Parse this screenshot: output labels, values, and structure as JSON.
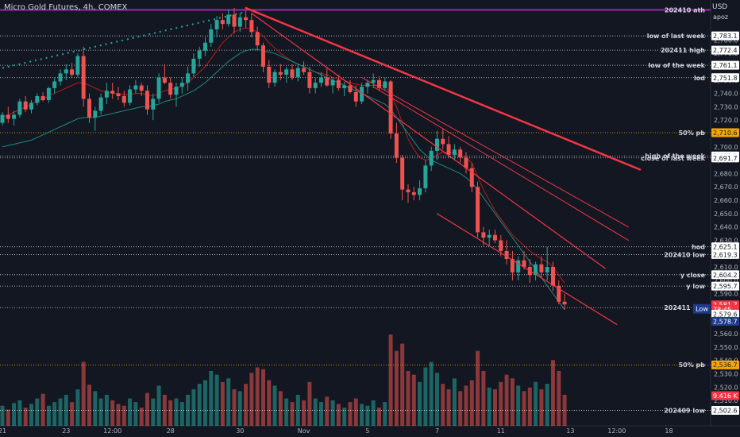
{
  "header": {
    "title": "Micro Gold Futures, 4h, COMEX",
    "currency": "USD",
    "user": "apoz"
  },
  "chart_data": {
    "type": "candlestick",
    "ylim": [
      2494,
      2807
    ],
    "price_ticks": [
      2780,
      2770,
      2760,
      2750,
      2740,
      2730,
      2720,
      2700,
      2690,
      2680,
      2670,
      2660,
      2650,
      2640,
      2630,
      2620,
      2610,
      2600,
      2590,
      2570,
      2560,
      2550,
      2540,
      2530,
      2520,
      2510
    ],
    "x_labels": [
      {
        "label": "21",
        "slot": 0
      },
      {
        "label": "23",
        "slot": 11
      },
      {
        "label": "12:00",
        "slot": 19
      },
      {
        "label": "28",
        "slot": 29
      },
      {
        "label": "30",
        "slot": 41
      },
      {
        "label": "Nov",
        "slot": 52
      },
      {
        "label": "5",
        "slot": 63
      },
      {
        "label": "7",
        "slot": 75
      },
      {
        "label": "11",
        "slot": 86
      },
      {
        "label": "13",
        "slot": 98
      },
      {
        "label": "12:00",
        "slot": 106
      },
      {
        "label": "18",
        "slot": 115
      }
    ],
    "candles": [
      [
        2718,
        2726,
        2716,
        2724
      ],
      [
        2724,
        2730,
        2718,
        2721
      ],
      [
        2721,
        2727,
        2716,
        2724
      ],
      [
        2724,
        2736,
        2722,
        2734
      ],
      [
        2734,
        2738,
        2726,
        2728
      ],
      [
        2728,
        2735,
        2725,
        2733
      ],
      [
        2733,
        2740,
        2731,
        2738
      ],
      [
        2738,
        2741,
        2734,
        2735
      ],
      [
        2735,
        2745,
        2733,
        2744
      ],
      [
        2744,
        2752,
        2740,
        2749
      ],
      [
        2749,
        2758,
        2746,
        2755
      ],
      [
        2755,
        2762,
        2750,
        2758
      ],
      [
        2758,
        2763,
        2752,
        2754
      ],
      [
        2754,
        2770,
        2752,
        2768
      ],
      [
        2768,
        2775,
        2730,
        2736
      ],
      [
        2736,
        2740,
        2718,
        2722
      ],
      [
        2722,
        2730,
        2712,
        2727
      ],
      [
        2727,
        2740,
        2724,
        2737
      ],
      [
        2737,
        2748,
        2732,
        2742
      ],
      [
        2742,
        2748,
        2736,
        2740
      ],
      [
        2740,
        2745,
        2735,
        2738
      ],
      [
        2738,
        2742,
        2730,
        2733
      ],
      [
        2733,
        2746,
        2731,
        2743
      ],
      [
        2743,
        2750,
        2740,
        2746
      ],
      [
        2746,
        2748,
        2738,
        2742
      ],
      [
        2742,
        2746,
        2724,
        2728
      ],
      [
        2728,
        2740,
        2720,
        2736
      ],
      [
        2736,
        2755,
        2733,
        2752
      ],
      [
        2752,
        2762,
        2747,
        2748
      ],
      [
        2748,
        2752,
        2736,
        2739
      ],
      [
        2739,
        2748,
        2730,
        2745
      ],
      [
        2745,
        2752,
        2740,
        2748
      ],
      [
        2748,
        2760,
        2742,
        2755
      ],
      [
        2755,
        2770,
        2752,
        2766
      ],
      [
        2766,
        2775,
        2760,
        2772
      ],
      [
        2772,
        2782,
        2768,
        2778
      ],
      [
        2778,
        2792,
        2775,
        2788
      ],
      [
        2788,
        2798,
        2782,
        2795
      ],
      [
        2795,
        2800,
        2788,
        2792
      ],
      [
        2792,
        2803,
        2790,
        2799
      ],
      [
        2799,
        2804,
        2785,
        2790
      ],
      [
        2790,
        2800,
        2786,
        2797
      ],
      [
        2797,
        2802,
        2789,
        2795
      ],
      [
        2795,
        2800,
        2782,
        2786
      ],
      [
        2786,
        2790,
        2772,
        2776
      ],
      [
        2776,
        2778,
        2756,
        2760
      ],
      [
        2760,
        2765,
        2744,
        2748
      ],
      [
        2748,
        2758,
        2745,
        2756
      ],
      [
        2756,
        2762,
        2750,
        2754
      ],
      [
        2754,
        2760,
        2748,
        2758
      ],
      [
        2758,
        2762,
        2750,
        2752
      ],
      [
        2752,
        2762,
        2749,
        2759
      ],
      [
        2759,
        2764,
        2754,
        2756
      ],
      [
        2756,
        2760,
        2740,
        2744
      ],
      [
        2744,
        2752,
        2740,
        2748
      ],
      [
        2748,
        2756,
        2745,
        2752
      ],
      [
        2752,
        2760,
        2745,
        2746
      ],
      [
        2746,
        2752,
        2740,
        2750
      ],
      [
        2750,
        2754,
        2742,
        2744
      ],
      [
        2744,
        2749,
        2738,
        2746
      ],
      [
        2746,
        2750,
        2740,
        2741
      ],
      [
        2741,
        2746,
        2730,
        2734
      ],
      [
        2734,
        2748,
        2732,
        2745
      ],
      [
        2745,
        2750,
        2740,
        2748
      ],
      [
        2748,
        2755,
        2744,
        2750
      ],
      [
        2750,
        2753,
        2742,
        2744
      ],
      [
        2744,
        2752,
        2742,
        2749
      ],
      [
        2749,
        2750,
        2706,
        2710
      ],
      [
        2710,
        2718,
        2688,
        2692
      ],
      [
        2692,
        2694,
        2660,
        2668
      ],
      [
        2668,
        2672,
        2658,
        2666
      ],
      [
        2666,
        2670,
        2660,
        2664
      ],
      [
        2664,
        2675,
        2660,
        2669
      ],
      [
        2669,
        2690,
        2666,
        2686
      ],
      [
        2686,
        2700,
        2682,
        2697
      ],
      [
        2697,
        2712,
        2690,
        2706
      ],
      [
        2706,
        2714,
        2698,
        2702
      ],
      [
        2702,
        2708,
        2692,
        2694
      ],
      [
        2694,
        2702,
        2690,
        2698
      ],
      [
        2698,
        2700,
        2688,
        2692
      ],
      [
        2692,
        2696,
        2680,
        2684
      ],
      [
        2684,
        2688,
        2666,
        2670
      ],
      [
        2670,
        2674,
        2632,
        2636
      ],
      [
        2636,
        2640,
        2626,
        2632
      ],
      [
        2632,
        2638,
        2626,
        2634
      ],
      [
        2634,
        2638,
        2628,
        2630
      ],
      [
        2630,
        2634,
        2618,
        2622
      ],
      [
        2622,
        2630,
        2612,
        2616
      ],
      [
        2616,
        2622,
        2600,
        2606
      ],
      [
        2606,
        2618,
        2600,
        2615
      ],
      [
        2615,
        2622,
        2608,
        2610
      ],
      [
        2610,
        2616,
        2598,
        2604
      ],
      [
        2604,
        2614,
        2600,
        2612
      ],
      [
        2612,
        2618,
        2602,
        2606
      ],
      [
        2606,
        2625,
        2600,
        2610
      ],
      [
        2610,
        2614,
        2592,
        2596
      ],
      [
        2596,
        2600,
        2582,
        2584
      ],
      [
        2584,
        2590,
        2578,
        2582
      ]
    ],
    "volumes": [
      22,
      18,
      25,
      28,
      20,
      24,
      30,
      35,
      22,
      26,
      30,
      34,
      26,
      40,
      70,
      45,
      38,
      30,
      34,
      28,
      24,
      22,
      30,
      26,
      20,
      36,
      30,
      44,
      34,
      28,
      30,
      26,
      34,
      40,
      46,
      50,
      60,
      56,
      48,
      52,
      40,
      38,
      46,
      58,
      64,
      62,
      50,
      44,
      38,
      30,
      26,
      34,
      28,
      48,
      30,
      26,
      32,
      28,
      24,
      20,
      26,
      30,
      24,
      22,
      28,
      20,
      26,
      100,
      82,
      90,
      60,
      56,
      48,
      64,
      70,
      58,
      46,
      40,
      52,
      38,
      44,
      50,
      82,
      60,
      42,
      40,
      48,
      56,
      52,
      44,
      38,
      42,
      48,
      40,
      46,
      72,
      60,
      34
    ],
    "ma_lines": [
      {
        "name": "",
        "color": "#b71c1c",
        "values": [
          2722,
          2724,
          2726,
          2728,
          2730,
          2732,
          2734,
          2736,
          2738,
          2740,
          2742,
          2744,
          2746,
          2748,
          2748,
          2746,
          2744,
          2742,
          2741,
          2740,
          2740,
          2739,
          2739,
          2740,
          2740,
          2739,
          2738,
          2740,
          2742,
          2743,
          2744,
          2746,
          2748,
          2752,
          2756,
          2760,
          2766,
          2772,
          2778,
          2782,
          2786,
          2788,
          2789,
          2788,
          2786,
          2783,
          2778,
          2774,
          2770,
          2767,
          2764,
          2762,
          2760,
          2758,
          2756,
          2755,
          2754,
          2752,
          2751,
          2750,
          2748,
          2747,
          2746,
          2746,
          2746,
          2746,
          2746,
          2740,
          2730,
          2718,
          2706,
          2698,
          2692,
          2690,
          2691,
          2694,
          2696,
          2696,
          2695,
          2694,
          2692,
          2688,
          2678,
          2668,
          2660,
          2652,
          2646,
          2640,
          2634,
          2630,
          2626,
          2622,
          2619,
          2616,
          2614,
          2610,
          2604,
          2598
        ]
      },
      {
        "name": "",
        "color": "#1f8a80",
        "values": [
          2700,
          2701,
          2702,
          2703,
          2704,
          2705,
          2707,
          2709,
          2711,
          2713,
          2715,
          2717,
          2719,
          2721,
          2722,
          2722,
          2722,
          2723,
          2724,
          2725,
          2726,
          2727,
          2728,
          2729,
          2730,
          2730,
          2731,
          2732,
          2734,
          2735,
          2736,
          2738,
          2740,
          2742,
          2745,
          2748,
          2752,
          2756,
          2760,
          2764,
          2767,
          2770,
          2772,
          2773,
          2773,
          2772,
          2771,
          2770,
          2768,
          2766,
          2764,
          2762,
          2760,
          2758,
          2756,
          2754,
          2752,
          2750,
          2748,
          2746,
          2744,
          2742,
          2740,
          2738,
          2736,
          2734,
          2732,
          2728,
          2722,
          2716,
          2710,
          2704,
          2698,
          2694,
          2690,
          2688,
          2686,
          2684,
          2682,
          2680,
          2677,
          2673,
          2668,
          2662,
          2656,
          2650,
          2644,
          2638,
          2632,
          2626,
          2620,
          2614,
          2608,
          2602,
          2596,
          2590,
          2584,
          2578
        ]
      }
    ],
    "hlines": [
      {
        "label": "202410 ath",
        "price": 2802.5,
        "style": "solid",
        "color": "#9c27b0"
      },
      {
        "label": "low of last week",
        "price": 2783.1,
        "style": "dotted",
        "color": "#d1d4dc"
      },
      {
        "label": "202411 high",
        "price": 2772.4,
        "style": "dotted",
        "color": "#d1d4dc"
      },
      {
        "label": "low of the week",
        "price": 2761.1,
        "style": "dotted",
        "color": "#d1d4dc"
      },
      {
        "label": "lod",
        "price": 2751.8,
        "style": "dotted",
        "color": "#d1d4dc"
      },
      {
        "label": "50% pb",
        "price": 2710.6,
        "style": "dotted",
        "color": "#f7a600"
      },
      {
        "label": "high of the week",
        "price": 2693.2,
        "style": "dotted",
        "color": "#d1d4dc"
      },
      {
        "label": "close of last week",
        "price": 2691.7,
        "style": "dotted",
        "color": "#d1d4dc"
      },
      {
        "label": "hod",
        "price": 2625.1,
        "style": "dotted",
        "color": "#d1d4dc"
      },
      {
        "label": "202410 low",
        "price": 2619.3,
        "style": "dotted",
        "color": "#d1d4dc"
      },
      {
        "label": "y close",
        "price": 2604.2,
        "style": "dotted",
        "color": "#d1d4dc"
      },
      {
        "label": "y low",
        "price": 2595.7,
        "style": "dotted",
        "color": "#d1d4dc"
      },
      {
        "label": "202411 low",
        "price": 2579.6,
        "style": "dotted",
        "color": "#d1d4dc"
      },
      {
        "label": "Low",
        "price": 2578.7,
        "style": "none",
        "color": "#1e3a8a"
      },
      {
        "label": "50% pb",
        "price": 2536.7,
        "style": "dotted",
        "color": "#f7a600"
      },
      {
        "label": "202409 low",
        "price": 2502.6,
        "style": "dotted",
        "color": "#d1d4dc"
      }
    ],
    "price_badges": [
      {
        "text": "2,783.1",
        "price": 2783.1,
        "bg": "#ffffff",
        "fg": "#131722"
      },
      {
        "text": "2,772.4",
        "price": 2772.4,
        "bg": "#ffffff",
        "fg": "#131722"
      },
      {
        "text": "2,761.1",
        "price": 2761.1,
        "bg": "#ffffff",
        "fg": "#131722"
      },
      {
        "text": "2,751.8",
        "price": 2751.8,
        "bg": "#ffffff",
        "fg": "#131722"
      },
      {
        "text": "2,710.6",
        "price": 2710.6,
        "bg": "#f7a600",
        "fg": "#131722"
      },
      {
        "text": "2,693.2",
        "price": 2693.2,
        "bg": "#ffffff",
        "fg": "#131722"
      },
      {
        "text": "2,691.7",
        "price": 2691.7,
        "bg": "#ffffff",
        "fg": "#131722"
      },
      {
        "text": "2,625.1",
        "price": 2625.1,
        "bg": "#ffffff",
        "fg": "#131722"
      },
      {
        "text": "2,619.3",
        "price": 2619.3,
        "bg": "#ffffff",
        "fg": "#131722"
      },
      {
        "text": "2,604.2",
        "price": 2604.2,
        "bg": "#ffffff",
        "fg": "#131722"
      },
      {
        "text": "2,595.7",
        "price": 2595.7,
        "bg": "#ffffff",
        "fg": "#131722"
      },
      {
        "text": "2,581.7",
        "price": 2581.7,
        "bg": "#f23645",
        "fg": "#ffffff"
      },
      {
        "text": "78:45",
        "price": 2578.2,
        "bg": "#f23645",
        "fg": "#ffffff"
      },
      {
        "text": "2,579.6",
        "price": 2574.7,
        "bg": "#ffffff",
        "fg": "#131722"
      },
      {
        "text": "2,578.7",
        "price": 2569.3,
        "bg": "#1e3a8a",
        "fg": "#ffffff"
      },
      {
        "text": "2,536.7",
        "price": 2536.7,
        "bg": "#f7a600",
        "fg": "#131722"
      },
      {
        "text": "9.416 K",
        "price": 2513.6,
        "bg": "#f23645",
        "fg": "#ffffff"
      },
      {
        "text": "2,502.6",
        "price": 2502.6,
        "bg": "#ffffff",
        "fg": "#131722"
      }
    ],
    "trendlines": [
      {
        "name": "",
        "color": "#f23645",
        "width": 2.5,
        "from": {
          "slot": 42,
          "price": 2804
        },
        "to": {
          "slot": 110,
          "price": 2683
        }
      },
      {
        "name": "",
        "color": "#f23645",
        "width": 1.2,
        "from": {
          "slot": 43,
          "price": 2800
        },
        "to": {
          "slot": 104,
          "price": 2609
        }
      },
      {
        "name": "",
        "color": "#f23645",
        "width": 1,
        "from": {
          "slot": 62,
          "price": 2752
        },
        "to": {
          "slot": 108,
          "price": 2640
        }
      },
      {
        "name": "",
        "color": "#f23645",
        "width": 1,
        "from": {
          "slot": 64,
          "price": 2745
        },
        "to": {
          "slot": 108,
          "price": 2630
        }
      },
      {
        "name": "",
        "color": "#f23645",
        "width": 1.2,
        "from": {
          "slot": 75,
          "price": 2650
        },
        "to": {
          "slot": 106,
          "price": 2567
        }
      }
    ],
    "dotted_trend": {
      "color": "#26a69a",
      "from": {
        "slot": 0,
        "price": 2759
      },
      "to": {
        "slot": 42,
        "price": 2801
      }
    }
  }
}
